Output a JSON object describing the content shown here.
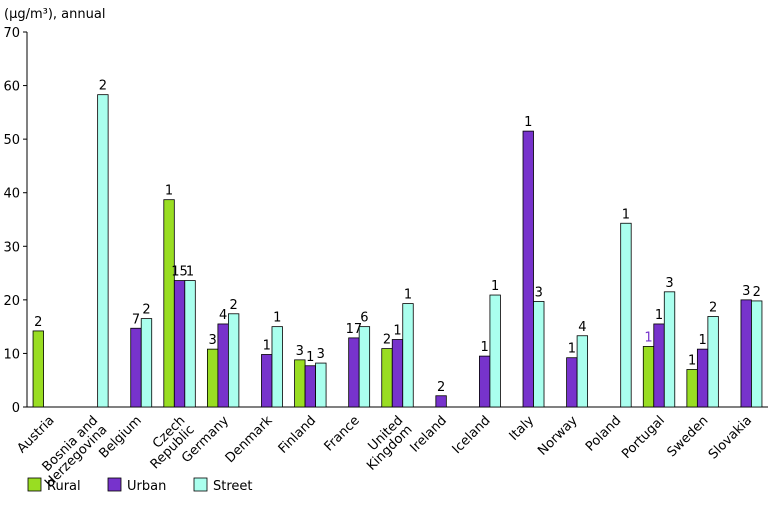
{
  "chart_data": {
    "type": "bar",
    "ylabel": "(μg/m³), annual",
    "ylim": [
      0,
      70
    ],
    "yticks": [
      0,
      10,
      20,
      30,
      40,
      50,
      60,
      70
    ],
    "grid": false,
    "legend_position": "bottom-left",
    "categories": [
      "Austria",
      "Bosnia and Herzegovina",
      "Belgium",
      "Czech Republic",
      "Germany",
      "Denmark",
      "Finland",
      "France",
      "United Kingdom",
      "Ireland",
      "Iceland",
      "Italy",
      "Norway",
      "Poland",
      "Portugal",
      "Sweden",
      "Slovakia"
    ],
    "series": [
      {
        "name": "Rural",
        "color": "#99dd22",
        "values": [
          14.2,
          null,
          null,
          38.7,
          10.8,
          null,
          8.8,
          null,
          10.9,
          null,
          null,
          null,
          null,
          null,
          11.3,
          7.0,
          null
        ],
        "labels": [
          "2",
          "",
          "",
          "1",
          "3",
          "",
          "3",
          "",
          "2",
          "",
          "",
          "",
          "",
          "",
          "1",
          "1",
          ""
        ]
      },
      {
        "name": "Urban",
        "color": "#7733cc",
        "values": [
          null,
          null,
          14.7,
          23.6,
          15.5,
          9.8,
          7.7,
          12.9,
          12.6,
          2.1,
          9.5,
          51.5,
          9.2,
          null,
          15.5,
          10.8,
          20.0
        ],
        "labels": [
          "",
          "",
          "7",
          "15",
          "4",
          "1",
          "1",
          "17",
          "1",
          "2",
          "1",
          "1",
          "1",
          "",
          "1",
          "1",
          "3"
        ]
      },
      {
        "name": "Street",
        "color": "#aaffee",
        "values": [
          null,
          58.3,
          16.5,
          23.6,
          17.4,
          15.0,
          8.2,
          15.0,
          19.3,
          null,
          20.9,
          19.7,
          13.3,
          34.3,
          21.5,
          16.9,
          19.8
        ],
        "labels": [
          "",
          "2",
          "2",
          "1",
          "2",
          "1",
          "3",
          "6",
          "1",
          "",
          "1",
          "3",
          "4",
          "1",
          "3",
          "2",
          "2"
        ]
      }
    ]
  }
}
